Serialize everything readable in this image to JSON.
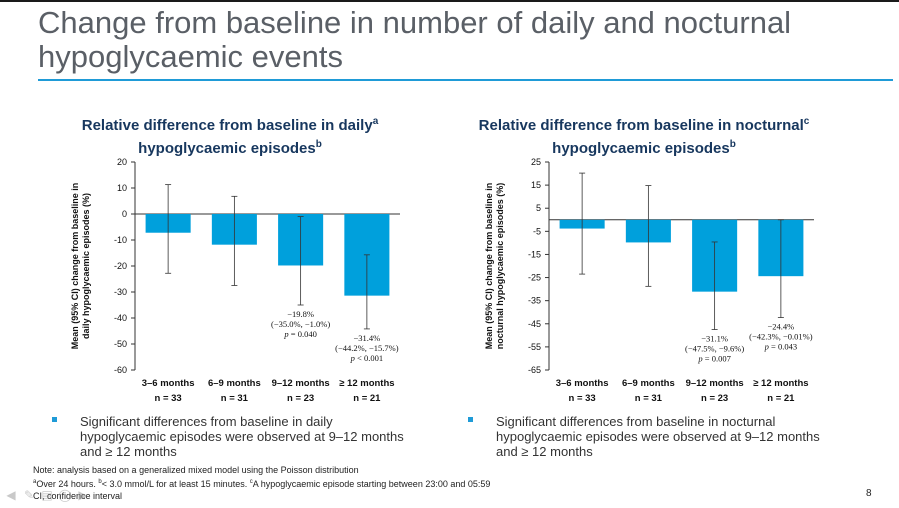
{
  "page": {
    "title": "Change from baseline in number of daily and nocturnal hypoglycaemic events",
    "page_number": "8",
    "accent_color": "#1f9bd7",
    "bar_color": "#00a0dc"
  },
  "charts": {
    "left": {
      "title_pre": "Relative difference from baseline in daily",
      "title_sup1": "a",
      "title_post": " hypoglycaemic episodes",
      "title_sup2": "b"
    },
    "right": {
      "title_pre": "Relative difference from baseline in nocturnal",
      "title_sup1": "c",
      "title_post": " hypoglycaemic episodes",
      "title_sup2": "b"
    }
  },
  "chart_data": [
    {
      "type": "bar",
      "title": "Relative difference from baseline in daily hypoglycaemic episodes",
      "ylabel": "Mean (95% CI) change from baseline in daily hypoglycaemic episodes (%)",
      "ylim": [
        -60,
        20
      ],
      "yticks": [
        20,
        10,
        0,
        -10,
        -20,
        -30,
        -40,
        -50,
        -60
      ],
      "categories": [
        "3–6 months",
        "6–9 months",
        "9–12 months",
        "≥ 12 months"
      ],
      "n_labels": [
        "n = 33",
        "n = 31",
        "n = 23",
        "n = 21"
      ],
      "values": [
        -7.2,
        -11.8,
        -19.8,
        -31.4
      ],
      "ci_low": [
        -22.8,
        -27.5,
        -35.0,
        -44.2
      ],
      "ci_high": [
        11.3,
        6.8,
        -1.0,
        -15.7
      ],
      "annotations": [
        null,
        null,
        [
          "−19.8%",
          "(−35.0%, −1.0%)",
          "p = 0.040"
        ],
        [
          "−31.4%",
          "(−44.2%, −15.7%)",
          "p < 0.001"
        ]
      ],
      "grid": false
    },
    {
      "type": "bar",
      "title": "Relative difference from baseline in nocturnal hypoglycaemic episodes",
      "ylabel": "Mean (95% CI) change from baseline in nocturnal hypoglycaemic episodes (%)",
      "ylim": [
        -65,
        25
      ],
      "yticks": [
        25,
        15,
        5,
        -5,
        -15,
        -25,
        -35,
        -45,
        -55,
        -65
      ],
      "categories": [
        "3–6 months",
        "6–9 months",
        "9–12 months",
        "≥ 12 months"
      ],
      "n_labels": [
        "n = 33",
        "n = 31",
        "n = 23",
        "n = 21"
      ],
      "values": [
        -3.8,
        -9.8,
        -31.1,
        -24.4
      ],
      "ci_low": [
        -23.5,
        -28.8,
        -47.5,
        -42.3
      ],
      "ci_high": [
        20.2,
        14.8,
        -9.6,
        -0.01
      ],
      "annotations": [
        null,
        null,
        [
          "−31.1%",
          "(−47.5%, −9.6%)",
          "p = 0.007"
        ],
        [
          "−24.4%",
          "(−42.3%, −0.01%)",
          "p = 0.043"
        ]
      ],
      "grid": false
    }
  ],
  "bullets": {
    "left": "Significant differences from baseline in daily hypoglycaemic episodes were observed at 9–12 months and ≥ 12 months",
    "right": "Significant differences from baseline in nocturnal hypoglycaemic episodes were observed at 9–12 months and ≥ 12 months"
  },
  "notes": {
    "line1": "Note: analysis based on a generalized mixed model using the Poisson distribution",
    "line2_a": "a",
    "line2_a_text": "Over 24 hours. ",
    "line2_b": "b",
    "line2_b_text": "< 3.0 mmol/L for at least 15 minutes. ",
    "line2_c": "c",
    "line2_c_text": "A hypoglycaemic episode starting between 23:00 and 05:59",
    "line3": "CI, confidence interval"
  },
  "nav_icons": [
    "back-icon",
    "pen-icon",
    "slides-icon",
    "zoom-icon",
    "forward-icon"
  ]
}
